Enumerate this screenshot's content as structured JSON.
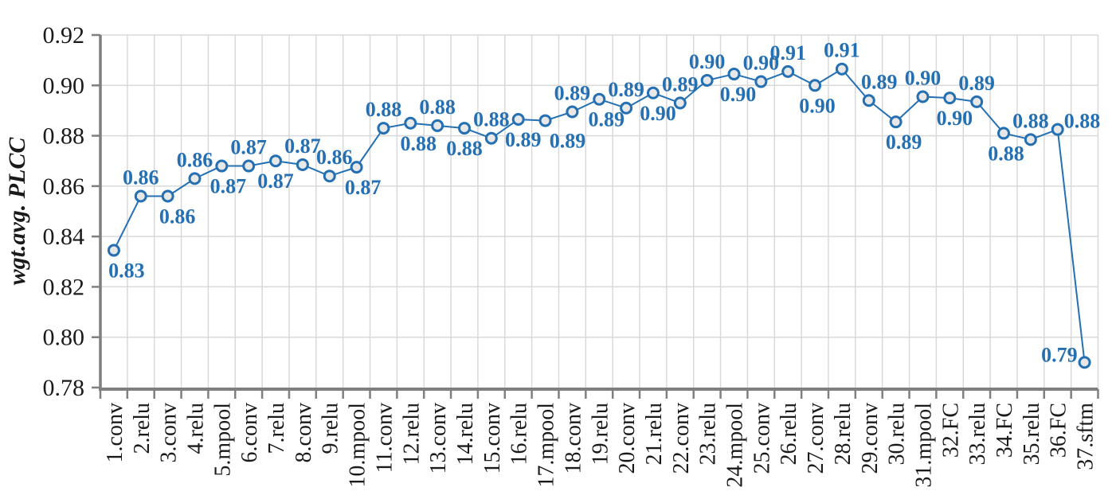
{
  "chart_data": {
    "type": "line",
    "title": "",
    "xlabel": "",
    "ylabel": "wgt.avg. PLCC",
    "legend_position": "none",
    "grid": true,
    "ylim": [
      0.78,
      0.92
    ],
    "yticks": [
      "0.78",
      "0.80",
      "0.82",
      "0.84",
      "0.86",
      "0.88",
      "0.90",
      "0.92"
    ],
    "categories": [
      "1.conv",
      "2.relu",
      "3.conv",
      "4.relu",
      "5.mpool",
      "6.conv",
      "7.relu",
      "8.conv",
      "9.relu",
      "10.mpool",
      "11.conv",
      "12.relu",
      "13.conv",
      "14.relu",
      "15.conv",
      "16.relu",
      "17.mpool",
      "18.conv",
      "19.relu",
      "20.conv",
      "21.relu",
      "22.conv",
      "23.relu",
      "24.mpool",
      "25.conv",
      "26.relu",
      "27.conv",
      "28.relu",
      "29.conv",
      "30.relu",
      "31.mpool",
      "32.FC",
      "33.relu",
      "34.FC",
      "35.relu",
      "36.FC",
      "37.sftm"
    ],
    "series": [
      {
        "name": "wgt.avg. PLCC",
        "values": [
          0.8345,
          0.856,
          0.856,
          0.863,
          0.868,
          0.868,
          0.87,
          0.8685,
          0.864,
          0.8675,
          0.883,
          0.885,
          0.884,
          0.883,
          0.879,
          0.8865,
          0.886,
          0.8895,
          0.8945,
          0.891,
          0.897,
          0.893,
          0.902,
          0.9045,
          0.9015,
          0.9055,
          0.9,
          0.9065,
          0.894,
          0.8855,
          0.8955,
          0.895,
          0.8935,
          0.881,
          0.8785,
          0.8825,
          0.79
        ]
      }
    ],
    "point_labels": [
      "0.83",
      "0.86",
      "0.86",
      "0.86",
      "0.87",
      "0.87",
      "0.87",
      "0.87",
      "0.86",
      "0.87",
      "0.88",
      "0.88",
      "0.88",
      "0.88",
      "0.88",
      "0.89",
      "0.89",
      "0.89",
      "0.89",
      "0.89",
      "0.90",
      "0.89",
      "0.90",
      "0.90",
      "0.90",
      "0.91",
      "0.90",
      "0.91",
      "0.89",
      "0.89",
      "0.90",
      "0.90",
      "0.89",
      "0.88",
      "0.88",
      "0.88",
      "0.79"
    ],
    "label_positions": [
      "below",
      "above",
      "below",
      "above",
      "below",
      "above",
      "below",
      "above",
      "above",
      "below",
      "above",
      "below",
      "above",
      "below",
      "above",
      "below",
      "below",
      "above",
      "below",
      "above",
      "below",
      "above",
      "above",
      "below",
      "above",
      "above",
      "below",
      "above",
      "above",
      "below",
      "above",
      "below",
      "above",
      "below",
      "above",
      "right",
      "left"
    ],
    "label_dx": [
      16,
      0,
      12,
      0,
      8,
      0,
      0,
      0,
      6,
      8,
      0,
      10,
      0,
      0,
      0,
      6,
      28,
      0,
      9,
      0,
      6,
      0,
      0,
      5,
      0,
      0,
      3,
      0,
      13,
      10,
      0,
      6,
      0,
      3,
      0,
      8,
      0
    ],
    "colors": {
      "line": "#2470B3",
      "marker_fill": "#E8E8E8",
      "marker_stroke": "#2470B3",
      "data_label": "#2470B3",
      "grid": "#D9D9D9",
      "axis": "#7F7F7F",
      "tick_text": "#1A1A1A"
    }
  }
}
